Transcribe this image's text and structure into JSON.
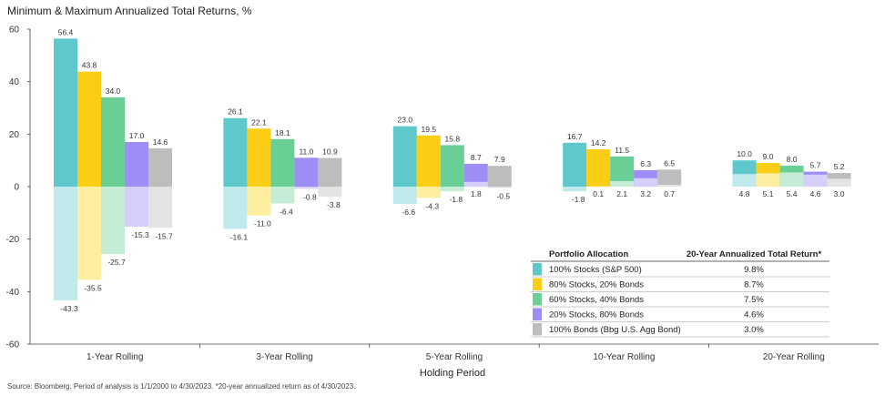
{
  "chart_data": {
    "type": "bar",
    "title": "Minimum & Maximum Annualized Total Returns, %",
    "xlabel": "Holding Period",
    "ylabel": "",
    "ylim": [
      -60,
      60
    ],
    "yticks": [
      -60,
      -40,
      -20,
      0,
      20,
      40,
      60
    ],
    "categories": [
      "1-Year Rolling",
      "3-Year Rolling",
      "5-Year Rolling",
      "10-Year Rolling",
      "20-Year Rolling"
    ],
    "series": [
      {
        "name": "100% Stocks (S&P 500)",
        "color": "#5ec8cc",
        "color_light": "#bfe9eb",
        "max": [
          56.4,
          26.1,
          23.0,
          16.7,
          10.0
        ],
        "min": [
          -43.3,
          -16.1,
          -6.6,
          -1.8,
          4.8
        ],
        "max_labels": [
          "56.4",
          "26.1",
          "23.0",
          "16.7",
          "10.0"
        ],
        "min_labels": [
          "-43.3",
          "-16.1",
          "-6.6",
          "-1.8",
          "4.8"
        ]
      },
      {
        "name": "80% Stocks, 20% Bonds",
        "color": "#fbcd14",
        "color_light": "#fdeea0",
        "max": [
          43.8,
          22.1,
          19.5,
          14.2,
          9.0
        ],
        "min": [
          -35.5,
          -11.0,
          -4.3,
          0.1,
          5.1
        ],
        "max_labels": [
          "43.8",
          "22.1",
          "19.5",
          "14.2",
          "9.0"
        ],
        "min_labels": [
          "-35.5",
          "-11.0",
          "-4.3",
          "0.1",
          "5.1"
        ]
      },
      {
        "name": "60% Stocks, 40% Bonds",
        "color": "#6acf94",
        "color_light": "#c5ecd4",
        "max": [
          34.0,
          18.1,
          15.8,
          11.5,
          8.0
        ],
        "min": [
          -25.7,
          -6.4,
          -1.8,
          2.1,
          5.4
        ],
        "max_labels": [
          "34.0",
          "18.1",
          "15.8",
          "11.5",
          "8.0"
        ],
        "min_labels": [
          "-25.7",
          "-6.4",
          "-1.8",
          "2.1",
          "5.4"
        ]
      },
      {
        "name": "20% Stocks, 80% Bonds",
        "color": "#9d8df5",
        "color_light": "#d6cffb",
        "max": [
          17.0,
          11.0,
          8.7,
          6.3,
          5.7
        ],
        "min": [
          -15.3,
          -0.8,
          1.8,
          3.2,
          4.6
        ],
        "max_labels": [
          "17.0",
          "11.0",
          "8.7",
          "6.3",
          "5.7"
        ],
        "min_labels": [
          "-15.3",
          "-0.8",
          "1.8",
          "3.2",
          "4.6"
        ]
      },
      {
        "name": "100% Bonds (Bbg U.S. Agg Bond)",
        "color": "#bdbdbd",
        "color_light": "#e3e3e3",
        "max": [
          14.6,
          10.9,
          7.9,
          6.5,
          5.2
        ],
        "min": [
          -15.7,
          -3.8,
          -0.5,
          0.7,
          3.0
        ],
        "max_labels": [
          "14.6",
          "10.9",
          "7.9",
          "6.5",
          "5.2"
        ],
        "min_labels": [
          "-15.7",
          "-3.8",
          "-0.5",
          "0.7",
          "3.0"
        ]
      }
    ],
    "legend": {
      "placement": "bottom-right",
      "header_left": "Portfolio Allocation",
      "header_right": "20-Year Annualized Total Return*",
      "returns": [
        "9.8%",
        "8.7%",
        "7.5%",
        "4.6%",
        "3.0%"
      ]
    },
    "grid": false
  },
  "source_note": "Source: Bloomberg. Period of analysis is 1/1/2000 to 4/30/2023. *20-year annualized return as of 4/30/2023."
}
